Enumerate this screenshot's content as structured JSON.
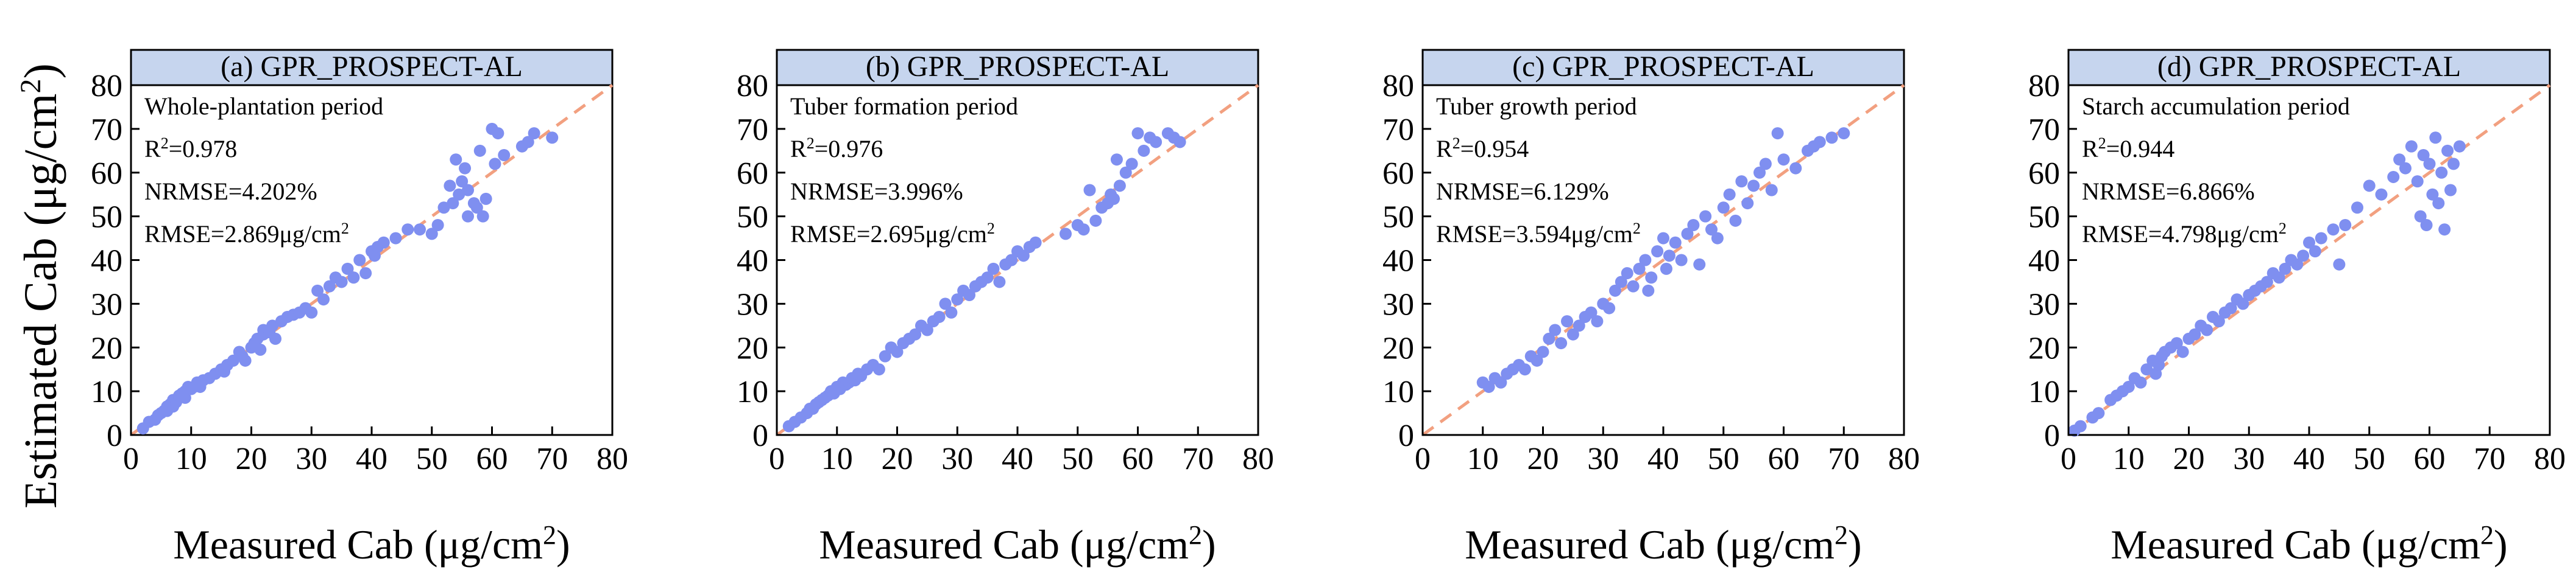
{
  "figure": {
    "ylabel_prefix": "Estimated Cab (μg/cm",
    "ylabel_sup": "2",
    "ylabel_suffix": ")"
  },
  "chart_data": [
    {
      "type": "scatter",
      "title": "(a) GPR_PROSPECT-AL",
      "period": "Whole-plantation period",
      "r2_label": "R",
      "r2_sup": "2",
      "r2_value": "=0.978",
      "nrmse": "NRMSE=4.202%",
      "rmse_prefix": "RMSE=2.869μg/cm",
      "rmse_sup": "2",
      "xlabel_prefix": "Measured Cab (μg/cm",
      "xlabel_sup": "2",
      "xlabel_suffix": ")",
      "xlim": [
        0,
        80
      ],
      "ylim": [
        0,
        80
      ],
      "xticks": [
        0,
        10,
        20,
        30,
        40,
        50,
        60,
        70,
        80
      ],
      "yticks": [
        0,
        10,
        20,
        30,
        40,
        50,
        60,
        70,
        80
      ],
      "reference_line": [
        [
          0,
          0
        ],
        [
          80,
          80
        ]
      ],
      "marker_color": "#7f8ff0",
      "line_color": "#f2a080",
      "header_color": "#c6d5ee",
      "x": [
        2,
        3,
        4,
        4.5,
        5,
        5.5,
        6,
        6,
        6.5,
        7,
        7,
        7.5,
        8,
        8,
        8.5,
        9,
        9,
        9.5,
        10,
        10.5,
        11,
        11.5,
        12,
        13,
        14,
        15,
        15.5,
        16,
        17,
        18,
        18.5,
        19,
        20,
        20.5,
        21,
        21.5,
        22,
        22,
        23,
        23.5,
        24,
        25,
        26,
        27,
        28,
        29,
        30,
        31,
        32,
        33,
        34,
        35,
        36,
        37,
        38,
        39,
        40,
        40.5,
        41,
        42,
        44,
        46,
        48,
        50,
        51,
        52,
        53,
        53.5,
        54,
        54.5,
        55,
        55.5,
        56,
        56,
        57,
        57.5,
        58,
        58.5,
        59,
        60,
        60.5,
        61,
        62,
        65,
        66,
        67,
        70
      ],
      "y": [
        1.5,
        3,
        3.5,
        4.5,
        5,
        5.5,
        6.5,
        5.5,
        7,
        6.5,
        8,
        7.5,
        8.5,
        9,
        9.5,
        10,
        8.5,
        11,
        10.5,
        11,
        12,
        11,
        12.5,
        13,
        14,
        15,
        14.5,
        16,
        17,
        19,
        18,
        17,
        20,
        21,
        22,
        19.5,
        23,
        24,
        23.5,
        25,
        22,
        26,
        27,
        27.5,
        28,
        29,
        28,
        33,
        31,
        34,
        36,
        35,
        38,
        36,
        40,
        37,
        42,
        41,
        43,
        44,
        45,
        47,
        47,
        46,
        48,
        52,
        57,
        53,
        63,
        55,
        58,
        61,
        50,
        56,
        53,
        52,
        65,
        50,
        54,
        70,
        62,
        69,
        64,
        66,
        67,
        69,
        68
      ],
      "stats": {
        "r2": 0.978,
        "nrmse_pct": 4.202,
        "rmse": 2.869
      }
    },
    {
      "type": "scatter",
      "title": "(b) GPR_PROSPECT-AL",
      "period": "Tuber formation period",
      "r2_label": "R",
      "r2_sup": "2",
      "r2_value": "=0.976",
      "nrmse": "NRMSE=3.996%",
      "rmse_prefix": "RMSE=2.695μg/cm",
      "rmse_sup": "2",
      "xlabel_prefix": "Measured Cab (μg/cm",
      "xlabel_sup": "2",
      "xlabel_suffix": ")",
      "xlim": [
        0,
        80
      ],
      "ylim": [
        0,
        80
      ],
      "xticks": [
        0,
        10,
        20,
        30,
        40,
        50,
        60,
        70,
        80
      ],
      "yticks": [
        0,
        10,
        20,
        30,
        40,
        50,
        60,
        70,
        80
      ],
      "reference_line": [
        [
          0,
          0
        ],
        [
          80,
          80
        ]
      ],
      "marker_color": "#7f8ff0",
      "line_color": "#f2a080",
      "header_color": "#c6d5ee",
      "x": [
        2,
        3,
        4,
        5,
        5.5,
        6,
        6.5,
        7,
        7.5,
        8,
        8.5,
        9,
        9.5,
        10,
        10.5,
        11,
        11.5,
        12,
        12.5,
        13,
        13.5,
        14,
        15,
        16,
        17,
        18,
        19,
        20,
        21,
        22,
        23,
        24,
        25,
        26,
        27,
        28,
        29,
        30,
        31,
        32,
        33,
        34,
        35,
        36,
        37,
        38,
        39,
        40,
        41,
        42,
        43,
        48,
        50,
        51,
        52,
        53,
        54,
        55,
        55.5,
        56,
        56.5,
        57,
        58,
        59,
        60,
        61,
        62,
        63,
        65,
        66,
        67
      ],
      "y": [
        2,
        3,
        4,
        5,
        6,
        6,
        7,
        7.5,
        8,
        8.5,
        9,
        10,
        9.5,
        11,
        10.5,
        12,
        11.5,
        12,
        13,
        12.5,
        14,
        13.5,
        15,
        16,
        15,
        18,
        20,
        19,
        21,
        22,
        23,
        25,
        24,
        26,
        27,
        30,
        28,
        31,
        33,
        32,
        34,
        35,
        36,
        38,
        35,
        39,
        40,
        42,
        41,
        43,
        44,
        46,
        48,
        47,
        56,
        49,
        52,
        53,
        55,
        54,
        63,
        57,
        60,
        62,
        69,
        65,
        68,
        67,
        69,
        68,
        67
      ],
      "stats": {
        "r2": 0.976,
        "nrmse_pct": 3.996,
        "rmse": 2.695
      }
    },
    {
      "type": "scatter",
      "title": "(c) GPR_PROSPECT-AL",
      "period": "Tuber growth period",
      "r2_label": "R",
      "r2_sup": "2",
      "r2_value": "=0.954",
      "nrmse": "NRMSE=6.129%",
      "rmse_prefix": "RMSE=3.594μg/cm",
      "rmse_sup": "2",
      "xlabel_prefix": "Measured Cab (μg/cm",
      "xlabel_sup": "2",
      "xlabel_suffix": ")",
      "xlim": [
        0,
        80
      ],
      "ylim": [
        0,
        80
      ],
      "xticks": [
        0,
        10,
        20,
        30,
        40,
        50,
        60,
        70,
        80
      ],
      "yticks": [
        0,
        10,
        20,
        30,
        40,
        50,
        60,
        70,
        80
      ],
      "reference_line": [
        [
          0,
          0
        ],
        [
          80,
          80
        ]
      ],
      "marker_color": "#7f8ff0",
      "line_color": "#f2a080",
      "header_color": "#c6d5ee",
      "x": [
        10,
        11,
        12,
        13,
        14,
        15,
        16,
        17,
        18,
        19,
        20,
        21,
        22,
        23,
        24,
        25,
        26,
        27,
        28,
        29,
        30,
        31,
        32,
        33,
        34,
        35,
        36,
        37,
        37.5,
        38,
        39,
        40,
        40.5,
        41,
        42,
        43,
        44,
        45,
        46,
        47,
        48,
        49,
        50,
        51,
        52,
        53,
        54,
        55,
        56,
        57,
        58,
        59,
        60,
        62,
        64,
        65,
        66,
        68,
        70
      ],
      "y": [
        12,
        11,
        13,
        12,
        14,
        15,
        16,
        15,
        18,
        17,
        19,
        22,
        24,
        21,
        26,
        23,
        25,
        27,
        28,
        26,
        30,
        29,
        33,
        35,
        37,
        34,
        38,
        40,
        33,
        36,
        42,
        45,
        38,
        41,
        44,
        40,
        46,
        48,
        39,
        50,
        47,
        45,
        52,
        55,
        49,
        58,
        53,
        57,
        60,
        62,
        56,
        69,
        63,
        61,
        65,
        66,
        67,
        68,
        69
      ],
      "stats": {
        "r2": 0.954,
        "nrmse_pct": 6.129,
        "rmse": 3.594
      }
    },
    {
      "type": "scatter",
      "title": "(d) GPR_PROSPECT-AL",
      "period": "Starch accumulation period",
      "r2_label": "R",
      "r2_sup": "2",
      "r2_value": "=0.944",
      "nrmse": "NRMSE=6.866%",
      "rmse_prefix": "RMSE=4.798μg/cm",
      "rmse_sup": "2",
      "xlabel_prefix": "Measured Cab (μg/cm",
      "xlabel_sup": "2",
      "xlabel_suffix": ")",
      "xlim": [
        0,
        80
      ],
      "ylim": [
        0,
        80
      ],
      "xticks": [
        0,
        10,
        20,
        30,
        40,
        50,
        60,
        70,
        80
      ],
      "yticks": [
        0,
        10,
        20,
        30,
        40,
        50,
        60,
        70,
        80
      ],
      "reference_line": [
        [
          0,
          0
        ],
        [
          80,
          80
        ]
      ],
      "marker_color": "#7f8ff0",
      "line_color": "#f2a080",
      "header_color": "#c6d5ee",
      "x": [
        1,
        2,
        4,
        5,
        7,
        8,
        9,
        10,
        11,
        12,
        13,
        14,
        14.5,
        15,
        15.5,
        16,
        17,
        18,
        19,
        20,
        21,
        22,
        23,
        24,
        25,
        26,
        27,
        28,
        29,
        30,
        31,
        32,
        33,
        34,
        35,
        36,
        37,
        38,
        39,
        40,
        41,
        42,
        44,
        45,
        46,
        48,
        50,
        52,
        54,
        55,
        56,
        57,
        58,
        58.5,
        59,
        59.5,
        60,
        60.5,
        61,
        61.5,
        62,
        62.5,
        63,
        63.5,
        64,
        65
      ],
      "y": [
        1,
        2,
        4,
        5,
        8,
        9,
        10,
        11,
        13,
        12,
        15,
        17,
        14,
        16,
        18,
        19,
        20,
        21,
        19,
        22,
        23,
        25,
        24,
        27,
        26,
        28,
        29,
        31,
        30,
        32,
        33,
        34,
        35,
        37,
        36,
        38,
        40,
        39,
        41,
        44,
        42,
        45,
        47,
        39,
        48,
        52,
        57,
        55,
        59,
        63,
        61,
        66,
        58,
        50,
        64,
        48,
        62,
        55,
        68,
        53,
        60,
        47,
        65,
        56,
        62,
        66
      ],
      "stats": {
        "r2": 0.944,
        "nrmse_pct": 6.866,
        "rmse": 4.798
      }
    }
  ]
}
